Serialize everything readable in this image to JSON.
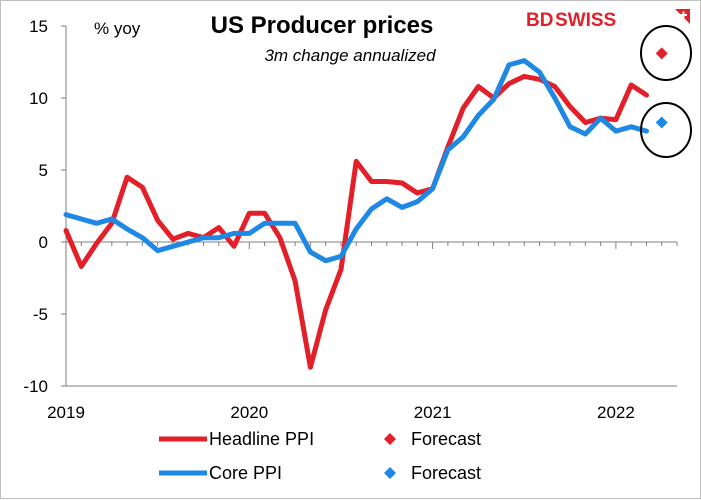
{
  "logo": {
    "part1": "BD",
    "part2": "SWISS",
    "color1": "#e3202a",
    "color2": "#e3202a",
    "mark": "plus-flag-icon"
  },
  "chart_data": {
    "type": "line",
    "title": "US Producer prices",
    "subtitle": "3m change annualized",
    "ylabel": "% yoy",
    "ylim": [
      -10,
      15
    ],
    "yticks": [
      15,
      10,
      5,
      0,
      -5,
      -10
    ],
    "xlim": [
      2019.0,
      2022.3333
    ],
    "xticks": [
      {
        "label": "2019",
        "x": 2019.0
      },
      {
        "label": "2020",
        "x": 2020.0
      },
      {
        "label": "2021",
        "x": 2021.0
      },
      {
        "label": "2022",
        "x": 2022.0
      }
    ],
    "x_start": 2019.0,
    "x_step": 0.0833333,
    "series": [
      {
        "name": "Headline PPI",
        "color": "#e3202a",
        "values": [
          0.8,
          -1.7,
          -0.1,
          1.3,
          4.5,
          3.8,
          1.5,
          0.2,
          0.6,
          0.3,
          1.0,
          -0.3,
          2.0,
          2.0,
          0.3,
          -2.7,
          -8.7,
          -4.7,
          -1.9,
          5.6,
          4.2,
          4.2,
          4.1,
          3.4,
          3.7,
          6.6,
          9.3,
          10.8,
          10.0,
          11.0,
          11.5,
          11.3,
          10.8,
          9.4,
          8.3,
          8.6,
          8.5,
          10.9,
          10.2
        ]
      },
      {
        "name": "Core PPI",
        "color": "#1e88e5",
        "values": [
          1.9,
          1.6,
          1.3,
          1.6,
          0.9,
          0.3,
          -0.6,
          -0.3,
          0.0,
          0.3,
          0.3,
          0.6,
          0.6,
          1.3,
          1.3,
          1.3,
          -0.7,
          -1.3,
          -1.0,
          0.9,
          2.3,
          3.0,
          2.4,
          2.8,
          3.7,
          6.4,
          7.3,
          8.8,
          9.9,
          12.3,
          12.6,
          11.8,
          10.0,
          8.0,
          7.5,
          8.6,
          7.7,
          8.0,
          7.7
        ]
      }
    ],
    "forecasts": [
      {
        "name": "Forecast",
        "color": "#e3202a",
        "x": 2022.25,
        "y": 13.1
      },
      {
        "name": "Forecast",
        "color": "#1e88e5",
        "x": 2022.25,
        "y": 8.3
      }
    ],
    "legend": [
      {
        "label": "Headline PPI",
        "kind": "line",
        "color": "#e3202a"
      },
      {
        "label": "Forecast",
        "kind": "diamond",
        "color": "#e3202a"
      },
      {
        "label": "Core PPI",
        "kind": "line",
        "color": "#1e88e5"
      },
      {
        "label": "Forecast",
        "kind": "diamond",
        "color": "#1e88e5"
      }
    ],
    "grid": false,
    "legend_position": "bottom"
  }
}
